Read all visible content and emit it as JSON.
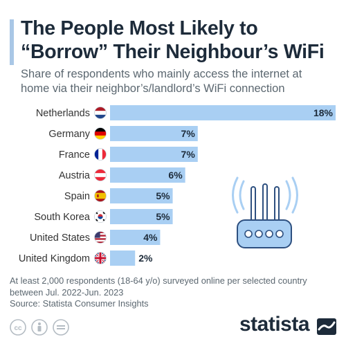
{
  "header": {
    "title_line1": "The People Most Likely to",
    "title_line2": "“Borrow” Their Neighbour’s WiFi",
    "subtitle_line1": "Share of respondents who mainly access the internet at",
    "subtitle_line2": "home via their neighbor’s/landlord’s WiFi connection"
  },
  "chart_data": {
    "type": "bar",
    "orientation": "horizontal",
    "title": "The People Most Likely to “Borrow” Their Neighbour’s WiFi",
    "subtitle": "Share of respondents who mainly access the internet at home via their neighbor’s/landlord’s WiFi connection",
    "categories": [
      "Netherlands",
      "Germany",
      "France",
      "Austria",
      "Spain",
      "South Korea",
      "United States",
      "United Kingdom"
    ],
    "values": [
      18,
      7,
      7,
      6,
      5,
      5,
      4,
      2
    ],
    "value_labels": [
      "18%",
      "7%",
      "7%",
      "6%",
      "5%",
      "5%",
      "4%",
      "2%"
    ],
    "flags": [
      "netherlands-flag-icon",
      "germany-flag-icon",
      "france-flag-icon",
      "austria-flag-icon",
      "spain-flag-icon",
      "south-korea-flag-icon",
      "united-states-flag-icon",
      "united-kingdom-flag-icon"
    ],
    "unit": "%",
    "xlim": [
      0,
      18
    ],
    "grid": false,
    "colors": {
      "bar": "#a9cff3",
      "label": "#1d2b3a",
      "accent": "#a9c7e6"
    },
    "illustration": "wifi-router-icon"
  },
  "footer": {
    "note_line1": "At least 2,000 respondents (18-64 y/o) surveyed online per selected country",
    "note_line2": "between Jul. 2022-Jun. 2023",
    "source": "Source: Statista Consumer Insights",
    "brand": "statista",
    "license_icons": [
      "creative-commons-icon",
      "attribution-icon",
      "no-derivatives-icon"
    ]
  }
}
